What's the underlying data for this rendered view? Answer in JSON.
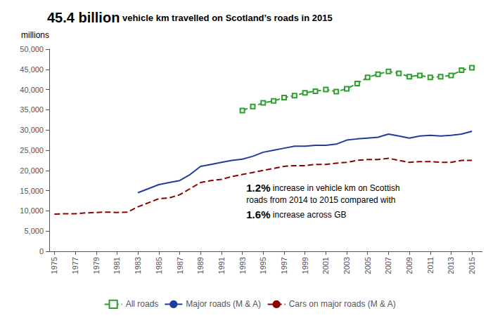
{
  "chart_data": {
    "type": "line",
    "title": "45.4 billion",
    "subtitle": "vehicle km travelled on Scotland’s roads in 2015",
    "ylabel": "millions",
    "xlim": [
      1974.5,
      2016
    ],
    "xticks": [
      1975,
      1977,
      1979,
      1981,
      1983,
      1985,
      1987,
      1989,
      1991,
      1993,
      1995,
      1997,
      1999,
      2001,
      2003,
      2005,
      2007,
      2009,
      2011,
      2013,
      2015
    ],
    "ylim": [
      0,
      50000
    ],
    "yticks": [
      0,
      {
        "value": 5000,
        "label": "5,000"
      },
      {
        "value": 10000,
        "label": "10,000"
      },
      {
        "value": 15000,
        "label": "15,000"
      },
      {
        "value": 20000,
        "label": "20,000"
      },
      {
        "value": 25000,
        "label": "25,000"
      },
      {
        "value": 30000,
        "label": "30,000"
      },
      {
        "value": 35000,
        "label": "35,000"
      },
      {
        "value": 40000,
        "label": "40,000"
      },
      {
        "value": 45000,
        "label": "45,000"
      },
      {
        "value": 50000,
        "label": "50,000"
      }
    ],
    "grid": false,
    "legend": "bottom",
    "annotations": [
      "1.2% increase in vehicle km on Scottish",
      "roads from 2014 to 2015 compared with",
      "1.6% increase across GB"
    ],
    "series": [
      {
        "name": "All roads",
        "color": "#2ca02c",
        "marker": "square",
        "line_style": "dashed",
        "x": [
          1993,
          1994,
          1995,
          1996,
          1997,
          1998,
          1999,
          2000,
          2001,
          2002,
          2003,
          2004,
          2005,
          2006,
          2007,
          2008,
          2009,
          2010,
          2011,
          2012,
          2013,
          2014,
          2015
        ],
        "values": [
          34800,
          35800,
          36700,
          37200,
          38000,
          38500,
          39200,
          39600,
          40000,
          39500,
          40200,
          41500,
          43000,
          43800,
          44500,
          44000,
          43200,
          43500,
          43000,
          43200,
          43500,
          44800,
          45400
        ]
      },
      {
        "name": "Major roads (M & A)",
        "color": "#1f3d99",
        "line_style": "solid",
        "x": [
          1983,
          1984,
          1985,
          1986,
          1987,
          1988,
          1989,
          1990,
          1991,
          1992,
          1993,
          1994,
          1995,
          1996,
          1997,
          1998,
          1999,
          2000,
          2001,
          2002,
          2003,
          2004,
          2005,
          2006,
          2007,
          2008,
          2009,
          2010,
          2011,
          2012,
          2013,
          2014,
          2015
        ],
        "values": [
          14500,
          15500,
          16500,
          17000,
          17500,
          19000,
          21000,
          21500,
          22000,
          22500,
          22800,
          23500,
          24500,
          25000,
          25500,
          26000,
          26000,
          26200,
          26200,
          26500,
          27500,
          27800,
          28000,
          28200,
          29000,
          28500,
          28000,
          28500,
          28700,
          28500,
          28700,
          29000,
          29700
        ]
      },
      {
        "name": "Cars on major roads (M & A)",
        "color": "#8b0000",
        "line_style": "dashed",
        "x": [
          1975,
          1976,
          1977,
          1978,
          1979,
          1980,
          1981,
          1982,
          1983,
          1984,
          1985,
          1986,
          1987,
          1988,
          1989,
          1990,
          1991,
          1992,
          1993,
          1994,
          1995,
          1996,
          1997,
          1998,
          1999,
          2000,
          2001,
          2002,
          2003,
          2004,
          2005,
          2006,
          2007,
          2008,
          2009,
          2010,
          2011,
          2012,
          2013,
          2014,
          2015
        ],
        "values": [
          9200,
          9300,
          9300,
          9500,
          9600,
          9700,
          9600,
          9700,
          11000,
          12000,
          13000,
          13200,
          14000,
          15500,
          17000,
          17500,
          17800,
          18500,
          19000,
          19500,
          20000,
          20500,
          21000,
          21200,
          21200,
          21500,
          21500,
          21800,
          22000,
          22500,
          22700,
          22700,
          23000,
          22500,
          22000,
          22200,
          22200,
          22000,
          22000,
          22500,
          22500
        ]
      }
    ]
  }
}
